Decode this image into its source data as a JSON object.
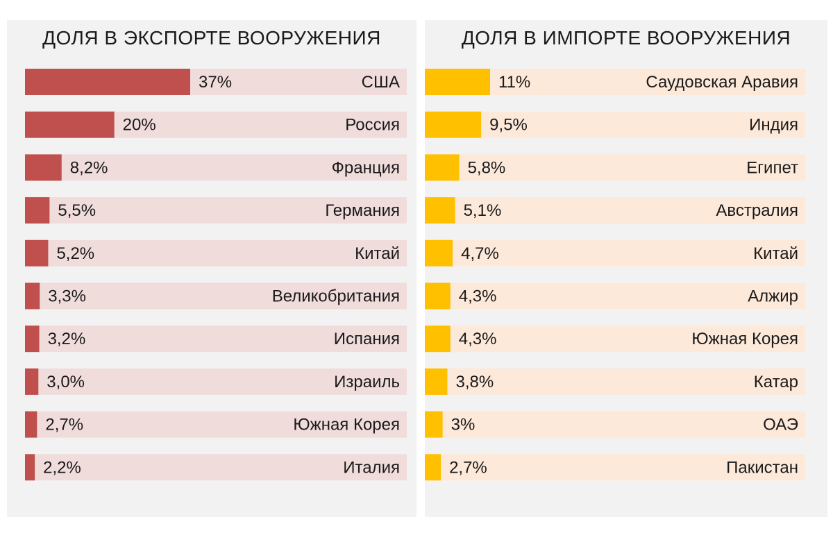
{
  "chart_data": [
    {
      "type": "bar",
      "orientation": "horizontal",
      "title": "ДОЛЯ В ЭКСПОРТЕ ВООРУЖЕНИЯ",
      "categories": [
        "США",
        "Россия",
        "Франция",
        "Германия",
        "Китай",
        "Великобритания",
        "Испания",
        "Израиль",
        "Южная Корея",
        "Италия"
      ],
      "values": [
        37,
        20,
        8.2,
        5.5,
        5.2,
        3.3,
        3.2,
        3.0,
        2.7,
        2.2
      ],
      "value_labels": [
        "37%",
        "20%",
        "8,2%",
        "5,5%",
        "5,2%",
        "3,3%",
        "3,2%",
        "3,0%",
        "2,7%",
        "2,2%"
      ],
      "unit": "%",
      "bar_color": "#c0504d",
      "background_color": "#f1dcdc",
      "grid": false
    },
    {
      "type": "bar",
      "orientation": "horizontal",
      "title": "ДОЛЯ В ИМПОРТЕ ВООРУЖЕНИЯ",
      "categories": [
        "Саудовская Аравия",
        "Индия",
        "Египет",
        "Австралия",
        "Китай",
        "Алжир",
        "Южная Корея",
        "Катар",
        "ОАЭ",
        "Пакистан"
      ],
      "values": [
        11,
        9.5,
        5.8,
        5.1,
        4.7,
        4.3,
        4.3,
        3.8,
        3,
        2.7
      ],
      "value_labels": [
        "11%",
        "9,5%",
        "5,8%",
        "5,1%",
        "4,7%",
        "4,3%",
        "4,3%",
        "3,8%",
        "3%",
        "2,7%"
      ],
      "unit": "%",
      "bar_color": "#ffc000",
      "background_color": "#fde9d9",
      "grid": false
    }
  ]
}
